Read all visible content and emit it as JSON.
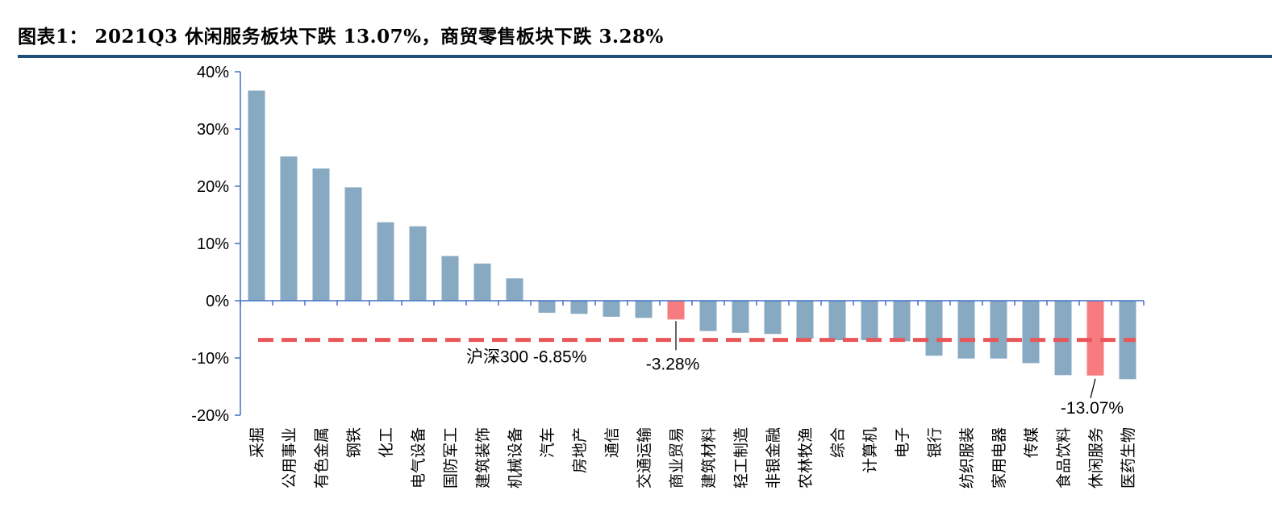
{
  "header": {
    "title": "图表1：  2021Q3 休闲服务板块下跌 13.07%，商贸零售板块下跌 3.28%"
  },
  "chart_data": {
    "type": "bar",
    "title": "图表1：  2021Q3 休闲服务板块下跌 13.07%，商贸零售板块下跌 3.28%",
    "xlabel": "",
    "ylabel": "",
    "ylim": [
      -20,
      40
    ],
    "yticks": [
      40,
      30,
      20,
      10,
      0,
      -10,
      -20
    ],
    "ytick_labels": [
      "40%",
      "30%",
      "20%",
      "10%",
      "0%",
      "-10%",
      "-20%"
    ],
    "grid": false,
    "categories": [
      "采掘",
      "公用事业",
      "有色金属",
      "钢铁",
      "化工",
      "电气设备",
      "国防军工",
      "建筑装饰",
      "机械设备",
      "汽车",
      "房地产",
      "通信",
      "交通运输",
      "商业贸易",
      "建筑材料",
      "轻工制造",
      "非银金融",
      "农林牧渔",
      "综合",
      "计算机",
      "电子",
      "银行",
      "纺织服装",
      "家用电器",
      "传媒",
      "食品饮料",
      "休闲服务",
      "医药生物"
    ],
    "values": [
      36.7,
      25.2,
      23.1,
      19.8,
      13.7,
      13.0,
      7.8,
      6.5,
      3.9,
      -2.1,
      -2.3,
      -2.8,
      -3.0,
      -3.28,
      -5.3,
      -5.6,
      -5.8,
      -6.6,
      -6.9,
      -6.9,
      -7.1,
      -9.6,
      -10.1,
      -10.1,
      -10.9,
      -13.0,
      -13.07,
      -13.7
    ],
    "highlight_categories": [
      "商业贸易",
      "休闲服务"
    ],
    "reference_line": {
      "value": -6.85,
      "label": "沪深300 -6.85%"
    },
    "annotations": [
      {
        "category": "商业贸易",
        "text": "-3.28%"
      },
      {
        "category": "休闲服务",
        "text": "-13.07%"
      }
    ],
    "colors": {
      "bar": "#87a9c2",
      "highlight": "#f77c80",
      "reference": "#e8575a",
      "axis": "#4472c4"
    }
  }
}
